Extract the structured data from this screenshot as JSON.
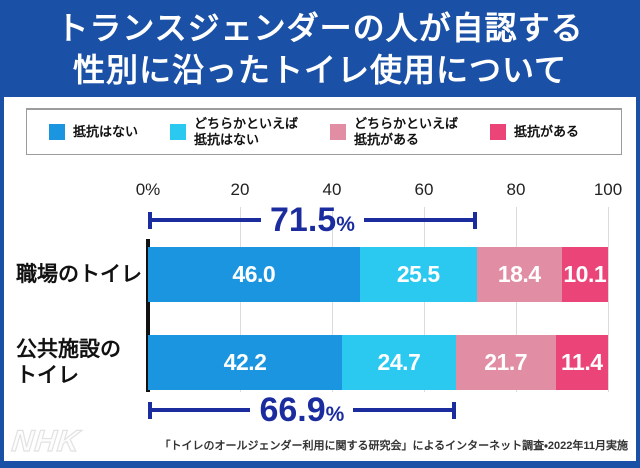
{
  "title": {
    "lines": [
      "トランスジェンダーの人が自認する",
      "性別に沿ったトイレ使用について"
    ]
  },
  "legend": {
    "items": [
      {
        "label": "抵抗はない",
        "color": "#1B95E0"
      },
      {
        "label": "どちらかといえば\n抵抗はない",
        "color": "#2BC8F0"
      },
      {
        "label": "どちらかといえば\n抵抗がある",
        "color": "#E18DA3"
      },
      {
        "label": "抵抗がある",
        "color": "#EA4479"
      }
    ]
  },
  "axis": {
    "ticks": [
      "0%",
      "20",
      "40",
      "60",
      "80",
      "100"
    ],
    "tick_values": [
      0,
      20,
      40,
      60,
      80,
      100
    ]
  },
  "chart_data": {
    "type": "bar",
    "orientation": "horizontal",
    "stacked": true,
    "title": "トランスジェンダーの人が自認する性別に沿ったトイレ使用について",
    "xlabel": "",
    "ylabel": "",
    "xlim": [
      0,
      100
    ],
    "grid": true,
    "categories": [
      "職場のトイレ",
      "公共施設の\nトイレ"
    ],
    "series": [
      {
        "name": "抵抗はない",
        "color": "#1B95E0",
        "values": [
          46.0,
          42.2
        ]
      },
      {
        "name": "どちらかといえば抵抗はない",
        "color": "#2BC8F0",
        "values": [
          25.5,
          24.7
        ]
      },
      {
        "name": "どちらかといえば抵抗がある",
        "color": "#E18DA3",
        "values": [
          18.4,
          21.7
        ]
      },
      {
        "name": "抵抗がある",
        "color": "#EA4479",
        "values": [
          10.1,
          11.4
        ]
      }
    ],
    "totals_annotations": [
      {
        "row": 0,
        "value": "71.5",
        "suffix": "%",
        "span_pct": 71.5,
        "position": "above"
      },
      {
        "row": 1,
        "value": "66.9",
        "suffix": "%",
        "span_pct": 66.9,
        "position": "below"
      }
    ]
  },
  "source": "「トイレのオールジェンダー利用に関する研究会」によるインターネット調査・2022年11月実施",
  "logo": "NHK",
  "colors": {
    "frame_blue": "#1A50A5",
    "bracket_navy": "#1B2D9E",
    "grid": "#DBDBDB",
    "axis_line": "#111111"
  }
}
